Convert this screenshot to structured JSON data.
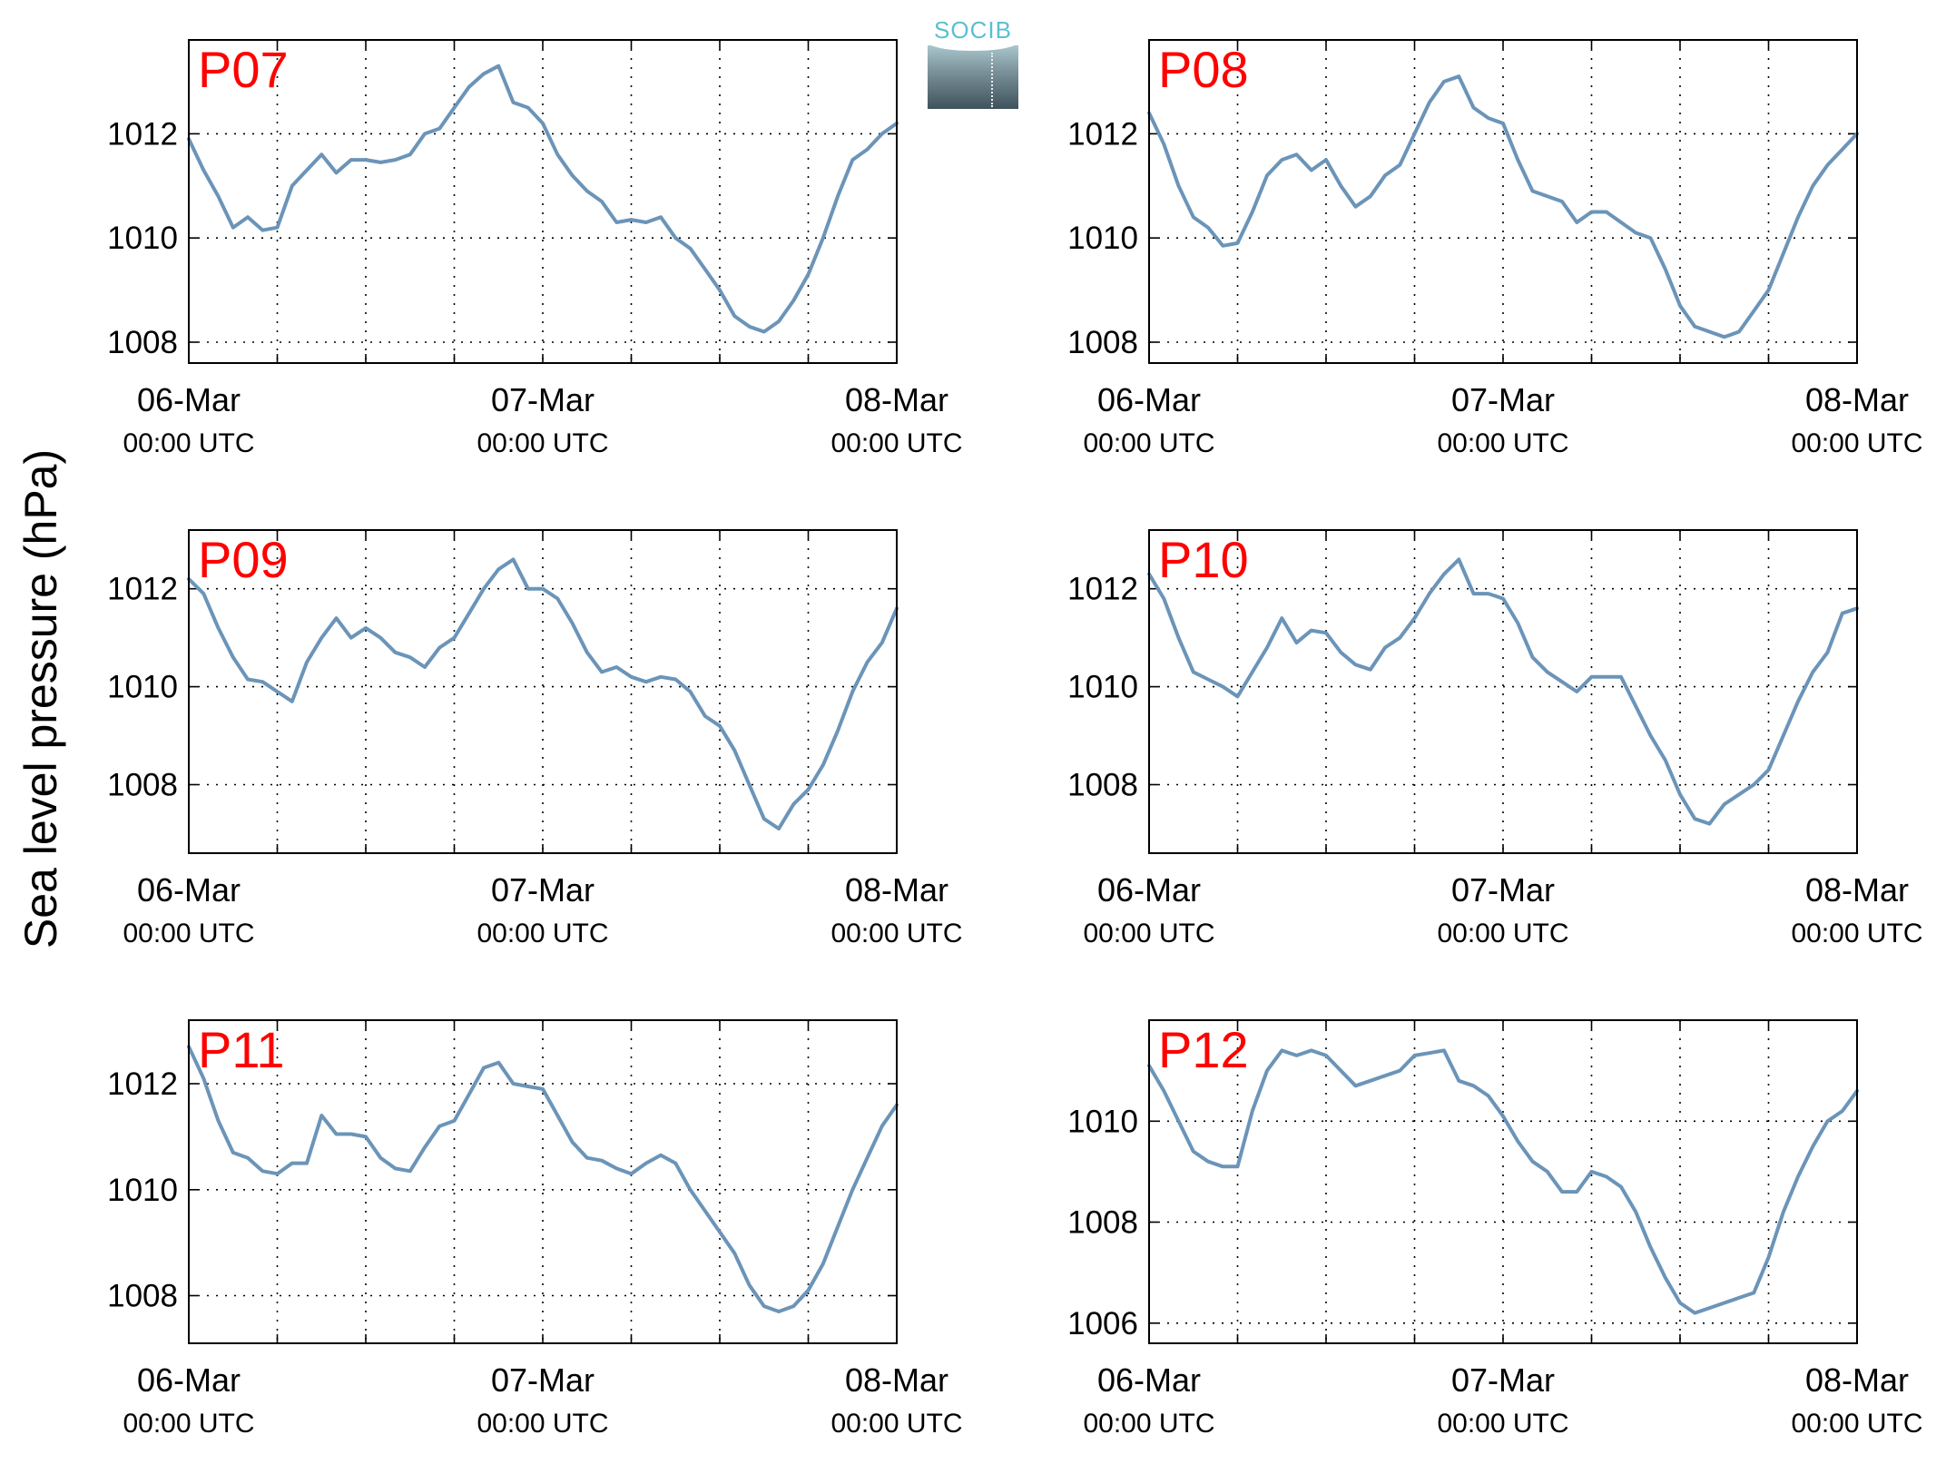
{
  "figure": {
    "ylabel": "Sea level pressure (hPa)",
    "logo_text": "SOCIB"
  },
  "colors": {
    "line": "#6b94b8",
    "panel_label": "#ff0000",
    "axes": "#000000",
    "grid": "#000000"
  },
  "chart_data": [
    {
      "type": "line",
      "title": "P07",
      "ylabel": "Sea level pressure (hPa)",
      "x_ticks": [
        {
          "main": "06-Mar",
          "sub": "00:00 UTC"
        },
        {
          "main": "07-Mar",
          "sub": "00:00 UTC"
        },
        {
          "main": "08-Mar",
          "sub": "00:00 UTC"
        }
      ],
      "yticks": [
        1008,
        1010,
        1012
      ],
      "ylim": [
        1007.6,
        1013.8
      ],
      "xlim": [
        0,
        48
      ],
      "grid": true,
      "x": [
        0,
        1,
        2,
        3,
        4,
        5,
        6,
        7,
        8,
        9,
        10,
        11,
        12,
        13,
        14,
        15,
        16,
        17,
        18,
        19,
        20,
        21,
        22,
        23,
        24,
        25,
        26,
        27,
        28,
        29,
        30,
        31,
        32,
        33,
        34,
        35,
        36,
        37,
        38,
        39,
        40,
        41,
        42,
        43,
        44,
        45,
        46,
        47,
        48
      ],
      "y": [
        1011.9,
        1011.3,
        1010.8,
        1010.2,
        1010.4,
        1010.15,
        1010.2,
        1011.0,
        1011.3,
        1011.6,
        1011.25,
        1011.5,
        1011.5,
        1011.45,
        1011.5,
        1011.6,
        1012.0,
        1012.1,
        1012.5,
        1012.9,
        1013.15,
        1013.3,
        1012.6,
        1012.5,
        1012.2,
        1011.6,
        1011.2,
        1010.9,
        1010.7,
        1010.3,
        1010.35,
        1010.3,
        1010.4,
        1010.0,
        1009.8,
        1009.4,
        1009.0,
        1008.5,
        1008.3,
        1008.2,
        1008.4,
        1008.8,
        1009.3,
        1010.0,
        1010.8,
        1011.5,
        1011.7,
        1012.0,
        1012.2
      ]
    },
    {
      "type": "line",
      "title": "P08",
      "ylabel": "Sea level pressure (hPa)",
      "x_ticks": [
        {
          "main": "06-Mar",
          "sub": "00:00 UTC"
        },
        {
          "main": "07-Mar",
          "sub": "00:00 UTC"
        },
        {
          "main": "08-Mar",
          "sub": "00:00 UTC"
        }
      ],
      "yticks": [
        1008,
        1010,
        1012
      ],
      "ylim": [
        1007.6,
        1013.8
      ],
      "xlim": [
        0,
        48
      ],
      "grid": true,
      "x": [
        0,
        1,
        2,
        3,
        4,
        5,
        6,
        7,
        8,
        9,
        10,
        11,
        12,
        13,
        14,
        15,
        16,
        17,
        18,
        19,
        20,
        21,
        22,
        23,
        24,
        25,
        26,
        27,
        28,
        29,
        30,
        31,
        32,
        33,
        34,
        35,
        36,
        37,
        38,
        39,
        40,
        41,
        42,
        43,
        44,
        45,
        46,
        47,
        48
      ],
      "y": [
        1012.4,
        1011.8,
        1011.0,
        1010.4,
        1010.2,
        1009.85,
        1009.9,
        1010.5,
        1011.2,
        1011.5,
        1011.6,
        1011.3,
        1011.5,
        1011.0,
        1010.6,
        1010.8,
        1011.2,
        1011.4,
        1012.0,
        1012.6,
        1013.0,
        1013.1,
        1012.5,
        1012.3,
        1012.2,
        1011.5,
        1010.9,
        1010.8,
        1010.7,
        1010.3,
        1010.5,
        1010.5,
        1010.3,
        1010.1,
        1010.0,
        1009.4,
        1008.7,
        1008.3,
        1008.2,
        1008.1,
        1008.2,
        1008.6,
        1009.0,
        1009.7,
        1010.4,
        1011.0,
        1011.4,
        1011.7,
        1012.0
      ]
    },
    {
      "type": "line",
      "title": "P09",
      "ylabel": "Sea level pressure (hPa)",
      "x_ticks": [
        {
          "main": "06-Mar",
          "sub": "00:00 UTC"
        },
        {
          "main": "07-Mar",
          "sub": "00:00 UTC"
        },
        {
          "main": "08-Mar",
          "sub": "00:00 UTC"
        }
      ],
      "yticks": [
        1008,
        1010,
        1012
      ],
      "ylim": [
        1006.6,
        1013.2
      ],
      "xlim": [
        0,
        48
      ],
      "grid": true,
      "x": [
        0,
        1,
        2,
        3,
        4,
        5,
        6,
        7,
        8,
        9,
        10,
        11,
        12,
        13,
        14,
        15,
        16,
        17,
        18,
        19,
        20,
        21,
        22,
        23,
        24,
        25,
        26,
        27,
        28,
        29,
        30,
        31,
        32,
        33,
        34,
        35,
        36,
        37,
        38,
        39,
        40,
        41,
        42,
        43,
        44,
        45,
        46,
        47,
        48
      ],
      "y": [
        1012.2,
        1011.9,
        1011.2,
        1010.6,
        1010.15,
        1010.1,
        1009.9,
        1009.7,
        1010.5,
        1011.0,
        1011.4,
        1011.0,
        1011.2,
        1011.0,
        1010.7,
        1010.6,
        1010.4,
        1010.8,
        1011.0,
        1011.5,
        1012.0,
        1012.4,
        1012.6,
        1012.0,
        1012.0,
        1011.8,
        1011.3,
        1010.7,
        1010.3,
        1010.4,
        1010.2,
        1010.1,
        1010.2,
        1010.15,
        1009.9,
        1009.4,
        1009.2,
        1008.7,
        1008.0,
        1007.3,
        1007.1,
        1007.6,
        1007.9,
        1008.4,
        1009.1,
        1009.9,
        1010.5,
        1010.9,
        1011.6
      ]
    },
    {
      "type": "line",
      "title": "P10",
      "ylabel": "Sea level pressure (hPa)",
      "x_ticks": [
        {
          "main": "06-Mar",
          "sub": "00:00 UTC"
        },
        {
          "main": "07-Mar",
          "sub": "00:00 UTC"
        },
        {
          "main": "08-Mar",
          "sub": "00:00 UTC"
        }
      ],
      "yticks": [
        1008,
        1010,
        1012
      ],
      "ylim": [
        1006.6,
        1013.2
      ],
      "xlim": [
        0,
        48
      ],
      "grid": true,
      "x": [
        0,
        1,
        2,
        3,
        4,
        5,
        6,
        7,
        8,
        9,
        10,
        11,
        12,
        13,
        14,
        15,
        16,
        17,
        18,
        19,
        20,
        21,
        22,
        23,
        24,
        25,
        26,
        27,
        28,
        29,
        30,
        31,
        32,
        33,
        34,
        35,
        36,
        37,
        38,
        39,
        40,
        41,
        42,
        43,
        44,
        45,
        46,
        47,
        48
      ],
      "y": [
        1012.3,
        1011.8,
        1011.0,
        1010.3,
        1010.15,
        1010.0,
        1009.8,
        1010.3,
        1010.8,
        1011.4,
        1010.9,
        1011.15,
        1011.1,
        1010.7,
        1010.45,
        1010.35,
        1010.8,
        1011.0,
        1011.4,
        1011.9,
        1012.3,
        1012.6,
        1011.9,
        1011.9,
        1011.8,
        1011.3,
        1010.6,
        1010.3,
        1010.1,
        1009.9,
        1010.2,
        1010.2,
        1010.2,
        1009.6,
        1009.0,
        1008.5,
        1007.8,
        1007.3,
        1007.2,
        1007.6,
        1007.8,
        1008.0,
        1008.3,
        1009.0,
        1009.7,
        1010.3,
        1010.7,
        1011.5,
        1011.6
      ]
    },
    {
      "type": "line",
      "title": "P11",
      "ylabel": "Sea level pressure (hPa)",
      "x_ticks": [
        {
          "main": "06-Mar",
          "sub": "00:00 UTC"
        },
        {
          "main": "07-Mar",
          "sub": "00:00 UTC"
        },
        {
          "main": "08-Mar",
          "sub": "00:00 UTC"
        }
      ],
      "yticks": [
        1008,
        1010,
        1012
      ],
      "ylim": [
        1007.1,
        1013.2
      ],
      "xlim": [
        0,
        48
      ],
      "grid": true,
      "x": [
        0,
        1,
        2,
        3,
        4,
        5,
        6,
        7,
        8,
        9,
        10,
        11,
        12,
        13,
        14,
        15,
        16,
        17,
        18,
        19,
        20,
        21,
        22,
        23,
        24,
        25,
        26,
        27,
        28,
        29,
        30,
        31,
        32,
        33,
        34,
        35,
        36,
        37,
        38,
        39,
        40,
        41,
        42,
        43,
        44,
        45,
        46,
        47,
        48
      ],
      "y": [
        1012.7,
        1012.1,
        1011.3,
        1010.7,
        1010.6,
        1010.35,
        1010.3,
        1010.5,
        1010.5,
        1011.4,
        1011.05,
        1011.05,
        1011.0,
        1010.6,
        1010.4,
        1010.35,
        1010.8,
        1011.2,
        1011.3,
        1011.8,
        1012.3,
        1012.4,
        1012.0,
        1011.95,
        1011.9,
        1011.4,
        1010.9,
        1010.6,
        1010.55,
        1010.4,
        1010.3,
        1010.5,
        1010.65,
        1010.5,
        1010.0,
        1009.6,
        1009.2,
        1008.8,
        1008.2,
        1007.8,
        1007.7,
        1007.8,
        1008.1,
        1008.6,
        1009.3,
        1010.0,
        1010.6,
        1011.2,
        1011.6
      ]
    },
    {
      "type": "line",
      "title": "P12",
      "ylabel": "Sea level pressure (hPa)",
      "x_ticks": [
        {
          "main": "06-Mar",
          "sub": "00:00 UTC"
        },
        {
          "main": "07-Mar",
          "sub": "00:00 UTC"
        },
        {
          "main": "08-Mar",
          "sub": "00:00 UTC"
        }
      ],
      "yticks": [
        1006,
        1008,
        1010
      ],
      "ylim": [
        1005.6,
        1012.0
      ],
      "xlim": [
        0,
        48
      ],
      "grid": true,
      "x": [
        0,
        1,
        2,
        3,
        4,
        5,
        6,
        7,
        8,
        9,
        10,
        11,
        12,
        13,
        14,
        15,
        16,
        17,
        18,
        19,
        20,
        21,
        22,
        23,
        24,
        25,
        26,
        27,
        28,
        29,
        30,
        31,
        32,
        33,
        34,
        35,
        36,
        37,
        38,
        39,
        40,
        41,
        42,
        43,
        44,
        45,
        46,
        47,
        48
      ],
      "y": [
        1011.1,
        1010.6,
        1010.0,
        1009.4,
        1009.2,
        1009.1,
        1009.1,
        1010.2,
        1011.0,
        1011.4,
        1011.3,
        1011.4,
        1011.3,
        1011.0,
        1010.7,
        1010.8,
        1010.9,
        1011.0,
        1011.3,
        1011.35,
        1011.4,
        1010.8,
        1010.7,
        1010.5,
        1010.1,
        1009.6,
        1009.2,
        1009.0,
        1008.6,
        1008.6,
        1009.0,
        1008.9,
        1008.7,
        1008.2,
        1007.5,
        1006.9,
        1006.4,
        1006.2,
        1006.3,
        1006.4,
        1006.5,
        1006.6,
        1007.3,
        1008.2,
        1008.9,
        1009.5,
        1010.0,
        1010.2,
        1010.6
      ]
    }
  ]
}
